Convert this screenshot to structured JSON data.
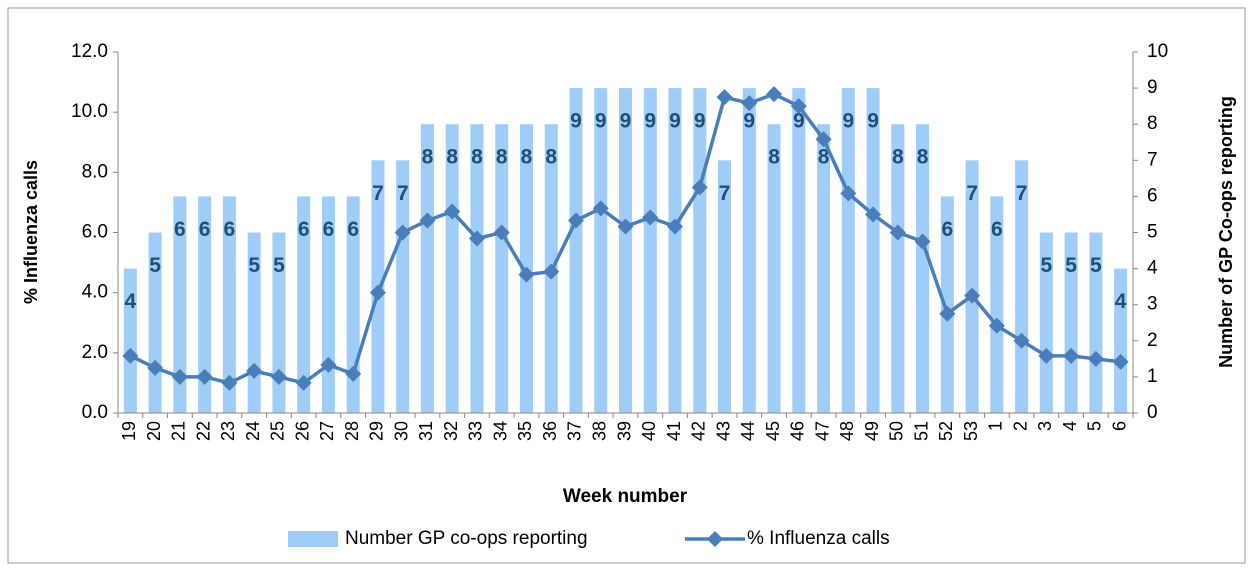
{
  "chart_data": {
    "type": "bar-line",
    "x_label": "Week number",
    "y_label": "% Influenza calls",
    "y2_label": "Number of GP Co-ops reporting",
    "categories": [
      "19",
      "20",
      "21",
      "22",
      "23",
      "24",
      "25",
      "26",
      "27",
      "28",
      "29",
      "30",
      "31",
      "32",
      "33",
      "34",
      "35",
      "36",
      "37",
      "38",
      "39",
      "40",
      "41",
      "42",
      "43",
      "44",
      "45",
      "46",
      "47",
      "48",
      "49",
      "50",
      "51",
      "52",
      "53",
      "1",
      "2",
      "3",
      "4",
      "5",
      "6"
    ],
    "series": [
      {
        "name": "Number GP co-ops reporting",
        "type": "bar",
        "axis": "y2",
        "color": "#9fcdf7",
        "label_color": "#1f4e79",
        "values": [
          4,
          5,
          6,
          6,
          6,
          5,
          5,
          6,
          6,
          6,
          7,
          7,
          8,
          8,
          8,
          8,
          8,
          8,
          9,
          9,
          9,
          9,
          9,
          9,
          7,
          9,
          8,
          9,
          8,
          9,
          9,
          8,
          8,
          6,
          7,
          6,
          7,
          5,
          5,
          5,
          4
        ]
      },
      {
        "name": "% Influenza calls",
        "type": "line",
        "axis": "y",
        "color": "#4a7ebb",
        "values": [
          1.9,
          1.5,
          1.2,
          1.2,
          1.0,
          1.4,
          1.2,
          1.0,
          1.6,
          1.3,
          4.0,
          6.0,
          6.4,
          6.7,
          5.8,
          6.0,
          4.6,
          4.7,
          6.4,
          6.8,
          6.2,
          6.5,
          6.2,
          7.5,
          10.5,
          10.3,
          10.6,
          10.2,
          9.1,
          7.3,
          6.6,
          6.0,
          5.7,
          3.3,
          3.9,
          2.9,
          2.4,
          1.9,
          1.9,
          1.8,
          1.7
        ]
      }
    ],
    "ylim": [
      0,
      12
    ],
    "yticks": [
      {
        "value": 0,
        "label": "0.0"
      },
      {
        "value": 2,
        "label": "2.0"
      },
      {
        "value": 4,
        "label": "4.0"
      },
      {
        "value": 6,
        "label": "6.0"
      },
      {
        "value": 8,
        "label": "8.0"
      },
      {
        "value": 10,
        "label": "10.0"
      },
      {
        "value": 12,
        "label": "12.0"
      }
    ],
    "y2lim": [
      0,
      10
    ],
    "y2ticks": [
      0,
      1,
      2,
      3,
      4,
      5,
      6,
      7,
      8,
      9,
      10
    ],
    "legend": "bottom"
  }
}
